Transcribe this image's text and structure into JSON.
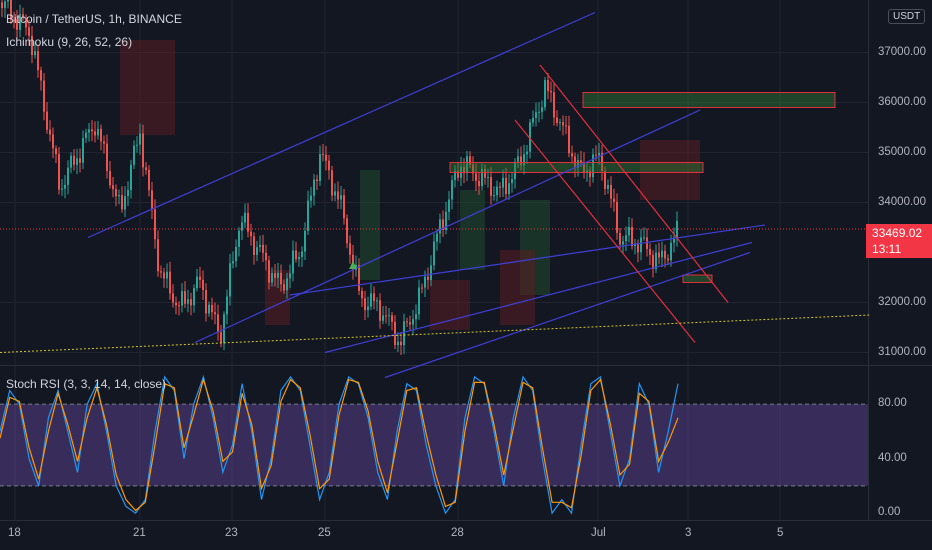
{
  "header": {
    "title": "Bitcoin / TetherUS, 1h, BINANCE",
    "ichimoku_label": "Ichimoku (9, 26, 52, 26)",
    "stoch_label": "Stoch RSI (3, 3, 14, 14, close)",
    "currency": "USDT"
  },
  "last_price": {
    "price": "33469.02",
    "countdown": "13:11"
  },
  "colors": {
    "background": "#131722",
    "grid": "#1f2430",
    "candle_up": "#26a69a",
    "candle_down": "#ef5350",
    "channel_blue": "#3f3fd8",
    "channel_red": "#e22f3d",
    "support_yellow": "#d4c52a",
    "stoch_k": "#2196f3",
    "stoch_d": "#ff9800",
    "stoch_band": "#7e57c2",
    "price_tag": "#f23645",
    "cloud_green": "#1f4a2e",
    "cloud_red": "#5a1d22"
  },
  "chart_data": [
    {
      "type": "candlestick",
      "title": "Bitcoin / TetherUS, 1h, BINANCE",
      "x_ticks": [
        "18",
        "21",
        "23",
        "25",
        "28",
        "Jul",
        "3",
        "5"
      ],
      "y_ticks": [
        "37000.00",
        "36000.00",
        "35000.00",
        "34000.00",
        "32000.00",
        "31000.00"
      ],
      "ylim": [
        30750,
        38050
      ],
      "last_price": 33469.02,
      "price_path": [
        [
          0,
          38000
        ],
        [
          30,
          37400
        ],
        [
          60,
          34300
        ],
        [
          95,
          35600
        ],
        [
          120,
          33800
        ],
        [
          140,
          35400
        ],
        [
          160,
          32600
        ],
        [
          180,
          31900
        ],
        [
          200,
          32400
        ],
        [
          220,
          31300
        ],
        [
          240,
          33700
        ],
        [
          260,
          33000
        ],
        [
          280,
          32300
        ],
        [
          300,
          33000
        ],
        [
          320,
          35000
        ],
        [
          340,
          34000
        ],
        [
          360,
          32100
        ],
        [
          380,
          31900
        ],
        [
          400,
          31200
        ],
        [
          420,
          32100
        ],
        [
          440,
          33500
        ],
        [
          460,
          34800
        ],
        [
          480,
          34500
        ],
        [
          500,
          34200
        ],
        [
          520,
          34800
        ],
        [
          545,
          36300
        ],
        [
          560,
          35600
        ],
        [
          580,
          34600
        ],
        [
          600,
          34900
        ],
        [
          620,
          33300
        ],
        [
          640,
          33200
        ],
        [
          660,
          32800
        ],
        [
          678,
          33400
        ]
      ],
      "annotations": {
        "blue_channels": [
          [
            [
              88,
              33300
            ],
            [
              595,
              37800
            ]
          ],
          [
            [
              195,
              31200
            ],
            [
              700,
              35850
            ]
          ],
          [
            [
              290,
              32150
            ],
            [
              765,
              33550
            ]
          ],
          [
            [
              325,
              31000
            ],
            [
              752,
              33200
            ]
          ],
          [
            [
              385,
              30500
            ],
            [
              750,
              33000
            ]
          ]
        ],
        "red_channels": [
          [
            [
              540,
              36750
            ],
            [
              728,
              32000
            ]
          ],
          [
            [
              515,
              35650
            ],
            [
              695,
              31200
            ]
          ]
        ],
        "support_line": [
          [
            0,
            31000
          ],
          [
            870,
            31750
          ]
        ],
        "green_zones": [
          [
            [
              450,
              34800
            ],
            [
              703,
              34600
            ]
          ],
          [
            [
              583,
              36200
            ],
            [
              835,
              35900
            ]
          ]
        ],
        "red_zones": [
          [
            [
              683,
              32550
            ],
            [
              712,
              32400
            ]
          ]
        ],
        "signal_marker": [
          353,
          32750
        ]
      }
    },
    {
      "type": "line",
      "title": "Stoch RSI (3, 3, 14, 14, close)",
      "y_ticks": [
        "80.00",
        "40.00",
        "0.00"
      ],
      "ylim": [
        -5,
        108
      ],
      "band": [
        20,
        80
      ],
      "series": [
        {
          "values": [
            60,
            90,
            80,
            40,
            20,
            70,
            90,
            60,
            30,
            80,
            95,
            60,
            20,
            5,
            0,
            10,
            60,
            100,
            90,
            40,
            80,
            100,
            70,
            30,
            50,
            95,
            60,
            10,
            40,
            90,
            100,
            90,
            50,
            10,
            30,
            80,
            100,
            95,
            70,
            30,
            10,
            60,
            95,
            90,
            50,
            20,
            0,
            10,
            70,
            100,
            95,
            60,
            20,
            70,
            100,
            90,
            40,
            0,
            10,
            0,
            50,
            95,
            100,
            60,
            20,
            40,
            95,
            80,
            30,
            60,
            95
          ]
        },
        {
          "values": [
            55,
            85,
            82,
            48,
            25,
            60,
            88,
            65,
            38,
            70,
            92,
            65,
            28,
            10,
            2,
            8,
            50,
            95,
            92,
            48,
            72,
            98,
            75,
            38,
            45,
            88,
            65,
            18,
            35,
            82,
            98,
            92,
            58,
            18,
            25,
            72,
            98,
            96,
            75,
            38,
            15,
            52,
            90,
            92,
            58,
            28,
            5,
            8,
            60,
            96,
            96,
            65,
            28,
            62,
            96,
            92,
            48,
            8,
            8,
            4,
            42,
            90,
            98,
            66,
            28,
            36,
            88,
            82,
            38,
            52,
            70
          ]
        }
      ]
    }
  ]
}
